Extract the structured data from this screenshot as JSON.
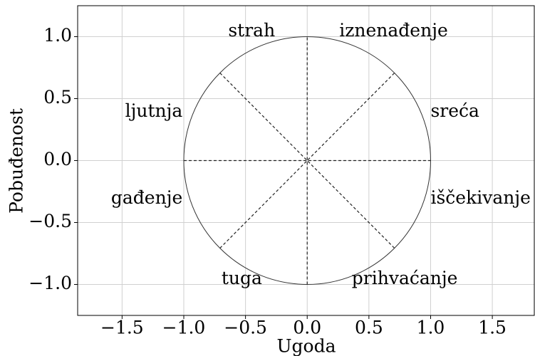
{
  "chart_data": {
    "type": "line",
    "xlabel": "Ugoda",
    "ylabel": "Pobuđenost",
    "xlim": [
      -1.86,
      1.84
    ],
    "ylim": [
      -1.25,
      1.25
    ],
    "xticks": [
      {
        "value": -1.5,
        "label": "−1.5"
      },
      {
        "value": -1.0,
        "label": "−1.0"
      },
      {
        "value": -0.5,
        "label": "−0.5"
      },
      {
        "value": 0,
        "label": "0.0"
      },
      {
        "value": 0.5,
        "label": "0.5"
      },
      {
        "value": 1.0,
        "label": "1.0"
      },
      {
        "value": 1.5,
        "label": "1.5"
      }
    ],
    "yticks": [
      {
        "value": -1.0,
        "label": "−1.0"
      },
      {
        "value": -0.5,
        "label": "−0.5"
      },
      {
        "value": 0,
        "label": "0.0"
      },
      {
        "value": 0.5,
        "label": "0.5"
      },
      {
        "value": 1.0,
        "label": "1.0"
      }
    ],
    "grid": true,
    "circle": {
      "center": [
        0,
        0
      ],
      "radius": 1,
      "color": "#333333"
    },
    "lines": [
      {
        "x": [
          -1,
          1
        ],
        "y": [
          0,
          0
        ]
      },
      {
        "x": [
          0,
          0
        ],
        "y": [
          -1,
          1
        ]
      },
      {
        "x": [
          -0.7071,
          0.7071
        ],
        "y": [
          -0.7071,
          0.7071
        ]
      },
      {
        "x": [
          -0.7071,
          0.7071
        ],
        "y": [
          0.7071,
          -0.7071
        ]
      }
    ],
    "line_color": "#222222",
    "annotations": [
      {
        "text": "strah",
        "x": -0.45,
        "y": 1.04,
        "ha": "middle"
      },
      {
        "text": "iznenađenje",
        "x": 0.7,
        "y": 1.04,
        "ha": "middle"
      },
      {
        "text": "sreća",
        "x": 1.0,
        "y": 0.39,
        "ha": "start"
      },
      {
        "text": "ljutnja",
        "x": -1.01,
        "y": 0.39,
        "ha": "end"
      },
      {
        "text": "iščekivanje",
        "x": 1.0,
        "y": -0.31,
        "ha": "start"
      },
      {
        "text": "gađenje",
        "x": -1.01,
        "y": -0.31,
        "ha": "end"
      },
      {
        "text": "tuga",
        "x": -0.53,
        "y": -0.96,
        "ha": "middle"
      },
      {
        "text": "prihvaćanje",
        "x": 0.79,
        "y": -0.96,
        "ha": "middle"
      }
    ]
  }
}
